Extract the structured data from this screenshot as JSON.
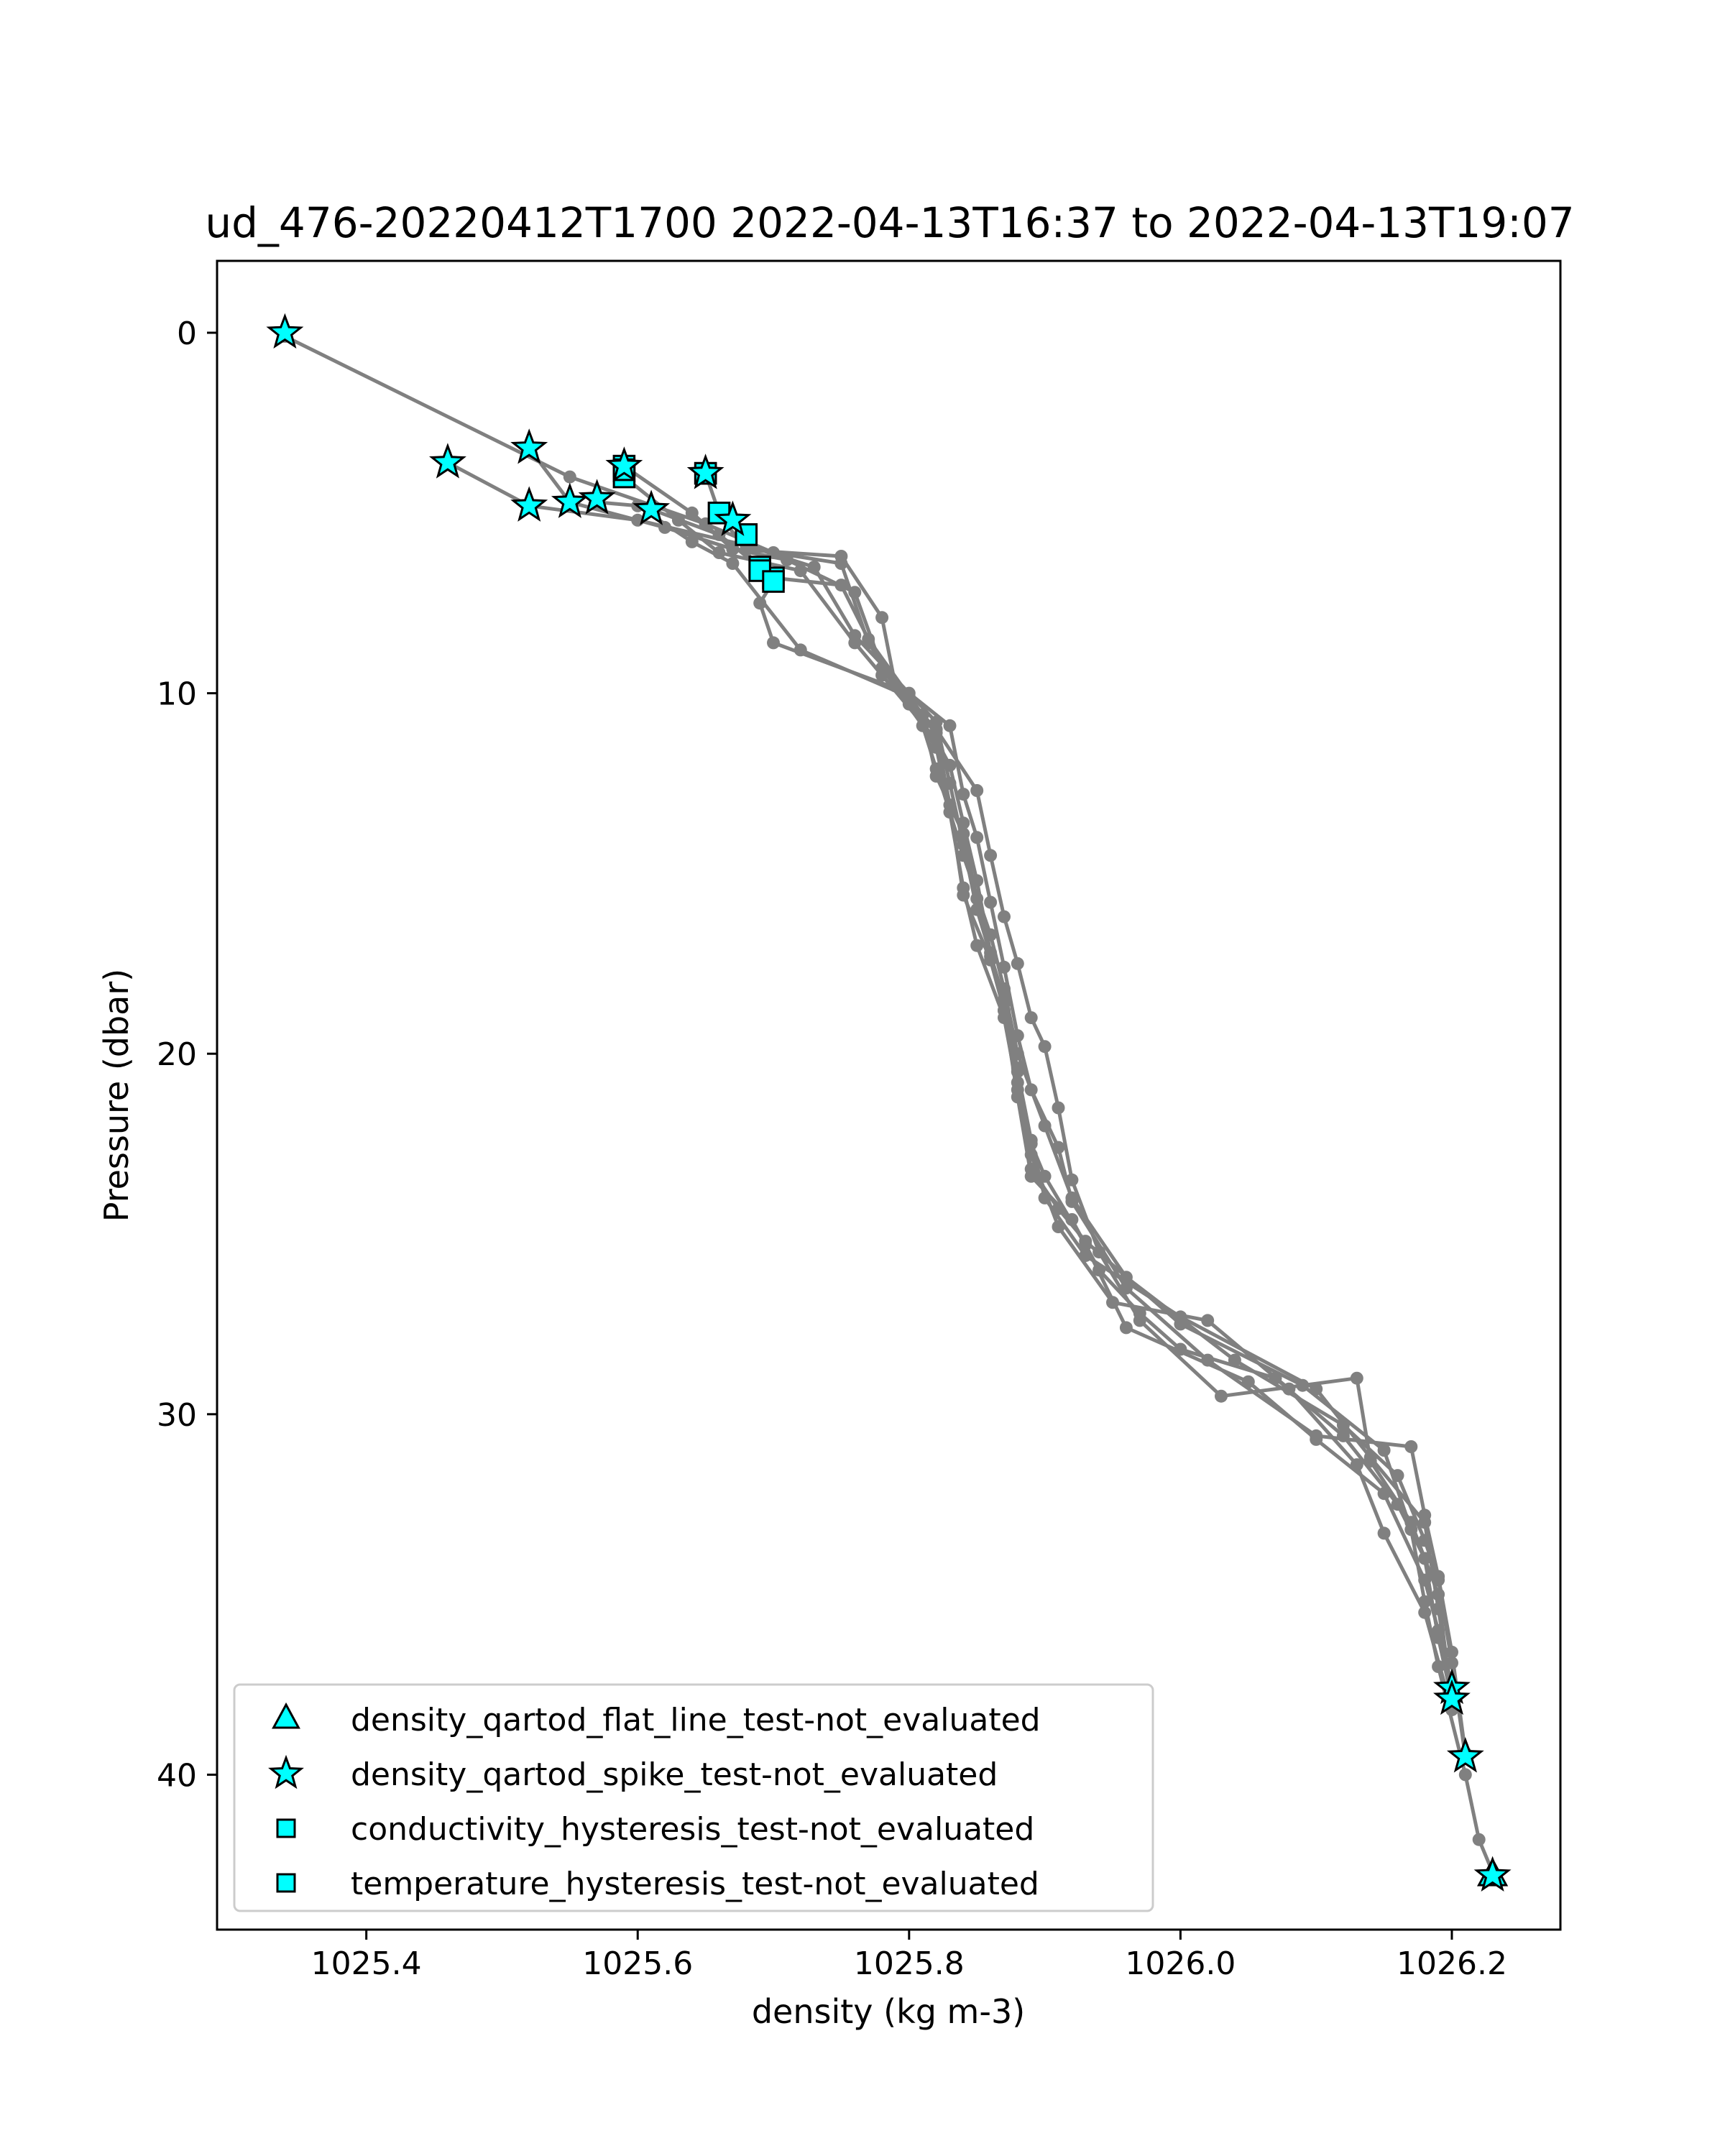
{
  "chart_data": {
    "type": "scatter",
    "title": "ud_476-20220412T1700 2022-04-13T16:37 to 2022-04-13T19:07",
    "xlabel": "density (kg m-3)",
    "ylabel": "Pressure (dbar)",
    "xlim": [
      1025.29,
      1026.28
    ],
    "ylim": [
      0,
      43.5
    ],
    "y_inverted": true,
    "x_ticks": [
      1025.4,
      1025.6,
      1025.8,
      1026.0,
      1026.2
    ],
    "x_tick_labels": [
      "1025.4",
      "1025.6",
      "1025.8",
      "1026.0",
      "1026.2"
    ],
    "y_ticks": [
      0,
      10,
      20,
      30,
      40
    ],
    "y_tick_labels": [
      "0",
      "10",
      "20",
      "30",
      "40"
    ],
    "grid": false,
    "legend_position": "lower-left",
    "line_color": "#808080",
    "marker_fill": "#00ffff",
    "marker_edge": "#000000",
    "profiles": [
      {
        "points": [
          [
            1025.34,
            0.1
          ],
          [
            1025.55,
            4.0
          ],
          [
            1025.65,
            5.3
          ],
          [
            1025.7,
            6.1
          ],
          [
            1025.75,
            6.4
          ],
          [
            1025.77,
            8.6
          ],
          [
            1025.8,
            10.3
          ],
          [
            1025.82,
            11.1
          ],
          [
            1025.83,
            13.1
          ],
          [
            1025.84,
            15.6
          ],
          [
            1025.86,
            17.4
          ],
          [
            1025.87,
            18.8
          ],
          [
            1025.88,
            21.2
          ],
          [
            1025.89,
            23.4
          ],
          [
            1025.92,
            24.6
          ],
          [
            1025.94,
            26.0
          ],
          [
            1025.97,
            27.2
          ],
          [
            1026.0,
            28.2
          ],
          [
            1026.07,
            29.0
          ],
          [
            1026.12,
            30.6
          ],
          [
            1026.16,
            32.5
          ],
          [
            1026.18,
            34.0
          ],
          [
            1026.19,
            36.2
          ],
          [
            1026.2,
            37.9
          ]
        ]
      },
      {
        "points": [
          [
            1025.46,
            3.6
          ],
          [
            1025.52,
            4.8
          ],
          [
            1025.6,
            5.2
          ],
          [
            1025.68,
            5.9
          ],
          [
            1025.73,
            6.5
          ],
          [
            1025.76,
            8.4
          ],
          [
            1025.82,
            10.8
          ],
          [
            1025.83,
            12.5
          ],
          [
            1025.84,
            14.2
          ],
          [
            1025.85,
            16.0
          ],
          [
            1025.87,
            18.5
          ],
          [
            1025.88,
            20.5
          ],
          [
            1025.89,
            22.4
          ],
          [
            1025.9,
            24.0
          ],
          [
            1025.93,
            25.6
          ],
          [
            1026.0,
            27.3
          ],
          [
            1026.1,
            29.3
          ],
          [
            1026.14,
            31.2
          ],
          [
            1026.18,
            33.0
          ],
          [
            1026.19,
            35.4
          ],
          [
            1026.2,
            37.7
          ]
        ]
      },
      {
        "points": [
          [
            1025.52,
            3.2
          ],
          [
            1025.55,
            4.7
          ],
          [
            1025.62,
            5.4
          ],
          [
            1025.67,
            6.0
          ],
          [
            1025.71,
            6.3
          ],
          [
            1025.76,
            7.2
          ],
          [
            1025.78,
            9.3
          ],
          [
            1025.81,
            10.9
          ],
          [
            1025.82,
            12.1
          ],
          [
            1025.84,
            14.5
          ],
          [
            1025.86,
            16.7
          ],
          [
            1025.87,
            18.2
          ],
          [
            1025.88,
            20.0
          ],
          [
            1025.9,
            22.0
          ],
          [
            1025.92,
            24.0
          ],
          [
            1025.96,
            26.2
          ],
          [
            1026.04,
            28.5
          ],
          [
            1026.12,
            30.3
          ],
          [
            1026.16,
            31.7
          ],
          [
            1026.18,
            33.5
          ],
          [
            1026.19,
            34.6
          ],
          [
            1026.2,
            36.9
          ],
          [
            1026.21,
            39.5
          ]
        ]
      },
      {
        "points": [
          [
            1025.57,
            4.7
          ],
          [
            1025.6,
            4.8
          ],
          [
            1025.64,
            5.8
          ],
          [
            1025.67,
            6.4
          ],
          [
            1025.72,
            8.8
          ],
          [
            1025.8,
            10.1
          ],
          [
            1025.82,
            11.5
          ],
          [
            1025.83,
            13.3
          ],
          [
            1025.84,
            15.4
          ],
          [
            1025.85,
            17.0
          ],
          [
            1025.87,
            19.0
          ],
          [
            1025.88,
            21.0
          ],
          [
            1025.89,
            23.2
          ],
          [
            1025.91,
            24.3
          ],
          [
            1025.93,
            25.2
          ],
          [
            1026.0,
            27.5
          ],
          [
            1026.09,
            29.2
          ],
          [
            1026.15,
            31.0
          ],
          [
            1026.17,
            33.2
          ],
          [
            1026.18,
            35.2
          ],
          [
            1026.19,
            37.0
          ],
          [
            1026.21,
            40.0
          ],
          [
            1026.22,
            41.8
          ],
          [
            1026.23,
            42.7
          ]
        ]
      },
      {
        "points": [
          [
            1025.59,
            3.7
          ],
          [
            1025.64,
            5.0
          ],
          [
            1025.67,
            6.0
          ],
          [
            1025.75,
            6.2
          ],
          [
            1025.78,
            7.9
          ],
          [
            1025.79,
            9.8
          ],
          [
            1025.82,
            11.0
          ],
          [
            1025.85,
            12.7
          ],
          [
            1025.86,
            14.5
          ],
          [
            1025.87,
            16.2
          ],
          [
            1025.88,
            17.5
          ],
          [
            1025.89,
            19.0
          ],
          [
            1025.9,
            19.8
          ],
          [
            1025.91,
            21.5
          ],
          [
            1025.92,
            23.5
          ],
          [
            1025.94,
            25.5
          ],
          [
            1025.97,
            27.4
          ],
          [
            1026.03,
            29.5
          ],
          [
            1026.13,
            29.0
          ],
          [
            1026.14,
            31.3
          ],
          [
            1026.17,
            33.0
          ],
          [
            1026.19,
            35.0
          ],
          [
            1026.2,
            38.0
          ]
        ]
      },
      {
        "points": [
          [
            1025.65,
            3.9
          ],
          [
            1025.66,
            5.0
          ],
          [
            1025.69,
            6.6
          ],
          [
            1025.7,
            6.9
          ],
          [
            1025.69,
            7.5
          ],
          [
            1025.7,
            8.6
          ],
          [
            1025.8,
            10.0
          ],
          [
            1025.83,
            10.9
          ],
          [
            1025.84,
            12.8
          ],
          [
            1025.85,
            14.0
          ],
          [
            1025.86,
            15.8
          ],
          [
            1025.87,
            17.6
          ],
          [
            1025.88,
            19.5
          ],
          [
            1025.89,
            21.0
          ],
          [
            1025.91,
            22.6
          ],
          [
            1025.92,
            24.1
          ],
          [
            1025.96,
            26.5
          ],
          [
            1026.02,
            28.5
          ],
          [
            1026.1,
            30.6
          ],
          [
            1026.17,
            30.9
          ],
          [
            1026.18,
            32.8
          ],
          [
            1026.19,
            34.5
          ],
          [
            1026.2,
            36.6
          ],
          [
            1026.21,
            39.4
          ]
        ]
      },
      {
        "points": [
          [
            1025.59,
            4.0
          ],
          [
            1025.63,
            5.2
          ],
          [
            1025.66,
            6.1
          ],
          [
            1025.72,
            6.6
          ],
          [
            1025.76,
            8.6
          ],
          [
            1025.78,
            9.5
          ],
          [
            1025.82,
            11.3
          ],
          [
            1025.83,
            12.0
          ],
          [
            1025.84,
            13.6
          ],
          [
            1025.85,
            15.2
          ],
          [
            1025.86,
            17.2
          ],
          [
            1025.87,
            18.8
          ],
          [
            1025.88,
            20.4
          ],
          [
            1025.89,
            22.8
          ],
          [
            1025.91,
            24.8
          ],
          [
            1025.95,
            26.9
          ],
          [
            1026.02,
            27.4
          ],
          [
            1026.08,
            29.3
          ],
          [
            1026.13,
            31.4
          ],
          [
            1026.15,
            33.3
          ],
          [
            1026.18,
            35.5
          ],
          [
            1026.2,
            38.2
          ]
        ]
      },
      {
        "points": [
          [
            1025.61,
            4.9
          ],
          [
            1025.66,
            5.6
          ],
          [
            1025.7,
            6.8
          ],
          [
            1025.75,
            7.0
          ],
          [
            1025.77,
            8.5
          ],
          [
            1025.81,
            10.6
          ],
          [
            1025.82,
            12.3
          ],
          [
            1025.84,
            13.9
          ],
          [
            1025.85,
            15.7
          ],
          [
            1025.86,
            17.3
          ],
          [
            1025.87,
            18.6
          ],
          [
            1025.88,
            20.8
          ],
          [
            1025.89,
            22.5
          ],
          [
            1025.9,
            23.4
          ],
          [
            1025.93,
            25.3
          ],
          [
            1025.96,
            27.6
          ],
          [
            1026.05,
            29.1
          ],
          [
            1026.1,
            30.7
          ],
          [
            1026.15,
            32.2
          ],
          [
            1026.18,
            34.6
          ],
          [
            1026.19,
            36.0
          ],
          [
            1026.2,
            37.6
          ]
        ]
      }
    ],
    "flagged": {
      "density_spike": [
        [
          1025.34,
          0.0
        ],
        [
          1025.46,
          3.6
        ],
        [
          1025.52,
          3.2
        ],
        [
          1025.52,
          4.8
        ],
        [
          1025.55,
          4.7
        ],
        [
          1025.57,
          4.6
        ],
        [
          1025.61,
          4.9
        ],
        [
          1025.59,
          3.7
        ],
        [
          1025.65,
          3.9
        ],
        [
          1025.67,
          5.2
        ],
        [
          1026.2,
          37.6
        ],
        [
          1026.2,
          37.9
        ],
        [
          1026.21,
          39.5
        ],
        [
          1026.23,
          42.8
        ]
      ],
      "density_flat_line": [
        [
          1026.23,
          42.8
        ]
      ],
      "conductivity_hysteresis": [
        [
          1025.59,
          3.7
        ],
        [
          1025.59,
          4.0
        ],
        [
          1025.65,
          3.9
        ],
        [
          1025.66,
          5.0
        ],
        [
          1025.68,
          5.6
        ],
        [
          1025.69,
          6.5
        ],
        [
          1025.7,
          6.8
        ]
      ],
      "temperature_hysteresis": [
        [
          1025.59,
          3.8
        ],
        [
          1025.65,
          3.9
        ],
        [
          1025.66,
          5.0
        ],
        [
          1025.68,
          5.6
        ],
        [
          1025.69,
          6.6
        ],
        [
          1025.7,
          6.9
        ]
      ]
    },
    "legend": [
      {
        "label": "density_qartod_flat_line_test-not_evaluated",
        "marker": "triangle"
      },
      {
        "label": "density_qartod_spike_test-not_evaluated",
        "marker": "star"
      },
      {
        "label": "conductivity_hysteresis_test-not_evaluated",
        "marker": "square"
      },
      {
        "label": "temperature_hysteresis_test-not_evaluated",
        "marker": "square"
      }
    ]
  }
}
